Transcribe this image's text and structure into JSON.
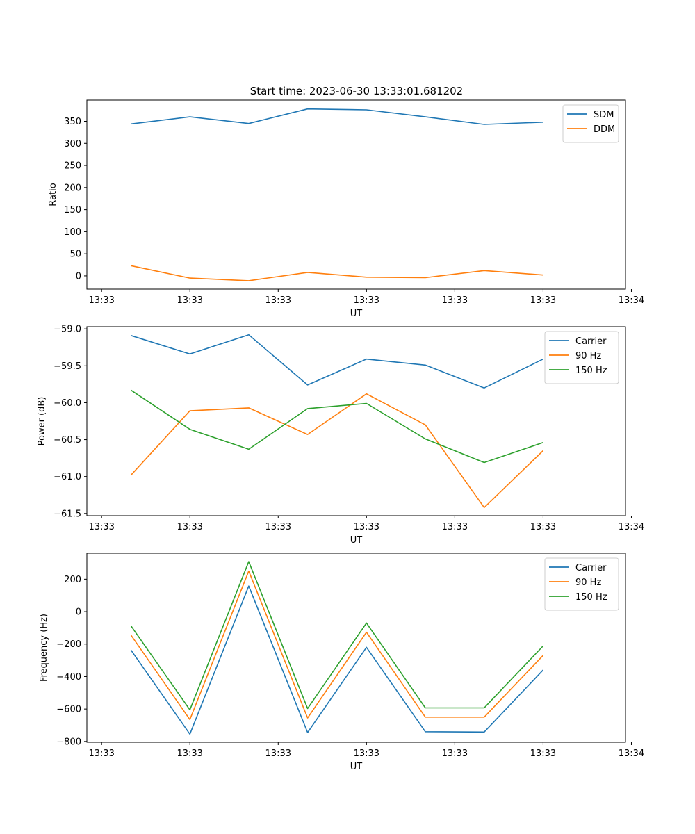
{
  "title": "Start time: 2023-06-30 13:33:01.681202",
  "colors": {
    "blue": "#1f77b4",
    "orange": "#ff7f0e",
    "green": "#2ca02c"
  },
  "chart_data": [
    {
      "type": "line",
      "title": "Start time: 2023-06-30 13:33:01.681202",
      "xlabel": "UT",
      "ylabel": "Ratio",
      "x_ticks": [
        "13:33",
        "13:33",
        "13:33",
        "13:33",
        "13:33",
        "13:33",
        "13:34"
      ],
      "y_ticks": [
        "0",
        "50",
        "100",
        "150",
        "200",
        "250",
        "300",
        "350"
      ],
      "ylim": [
        -30,
        398
      ],
      "legend_position": "top-right",
      "x": [
        1,
        2,
        3,
        4,
        5,
        6,
        7,
        8
      ],
      "series": [
        {
          "name": "SDM",
          "color": "#1f77b4",
          "values": [
            344,
            360,
            345,
            378,
            376,
            360,
            343,
            348
          ]
        },
        {
          "name": "DDM",
          "color": "#ff7f0e",
          "values": [
            23,
            -5,
            -11,
            8,
            -3,
            -4,
            12,
            2
          ]
        }
      ]
    },
    {
      "type": "line",
      "xlabel": "UT",
      "ylabel": "Power (dB)",
      "x_ticks": [
        "13:33",
        "13:33",
        "13:33",
        "13:33",
        "13:33",
        "13:33",
        "13:34"
      ],
      "y_ticks": [
        "−59.0",
        "−59.5",
        "−60.0",
        "−60.5",
        "−61.0",
        "−61.5"
      ],
      "ylim": [
        -61.53,
        -58.97
      ],
      "legend_position": "top-right",
      "x": [
        1,
        2,
        3,
        4,
        5,
        6,
        7,
        8
      ],
      "series": [
        {
          "name": "Carrier",
          "color": "#1f77b4",
          "values": [
            -59.09,
            -59.34,
            -59.08,
            -59.76,
            -59.41,
            -59.49,
            -59.8,
            -59.41
          ]
        },
        {
          "name": "90 Hz",
          "color": "#ff7f0e",
          "values": [
            -60.98,
            -60.11,
            -60.07,
            -60.43,
            -59.88,
            -60.3,
            -61.42,
            -60.65
          ]
        },
        {
          "name": "150 Hz",
          "color": "#2ca02c",
          "values": [
            -59.83,
            -60.36,
            -60.63,
            -60.08,
            -60.01,
            -60.49,
            -60.81,
            -60.54
          ]
        }
      ]
    },
    {
      "type": "line",
      "xlabel": "UT",
      "ylabel": "Frequency (Hz)",
      "x_ticks": [
        "13:33",
        "13:33",
        "13:33",
        "13:33",
        "13:33",
        "13:33",
        "13:34"
      ],
      "y_ticks": [
        "200",
        "0",
        "−200",
        "−400",
        "−600",
        "−800"
      ],
      "ylim": [
        -805,
        360
      ],
      "legend_position": "top-right",
      "x": [
        1,
        2,
        3,
        4,
        5,
        6,
        7,
        8
      ],
      "series": [
        {
          "name": "Carrier",
          "color": "#1f77b4",
          "values": [
            -237,
            -755,
            158,
            -745,
            -220,
            -740,
            -742,
            -360
          ]
        },
        {
          "name": "90 Hz",
          "color": "#ff7f0e",
          "values": [
            -145,
            -665,
            250,
            -655,
            -127,
            -650,
            -650,
            -270
          ]
        },
        {
          "name": "150 Hz",
          "color": "#2ca02c",
          "values": [
            -88,
            -605,
            308,
            -597,
            -70,
            -593,
            -593,
            -212
          ]
        }
      ]
    }
  ]
}
